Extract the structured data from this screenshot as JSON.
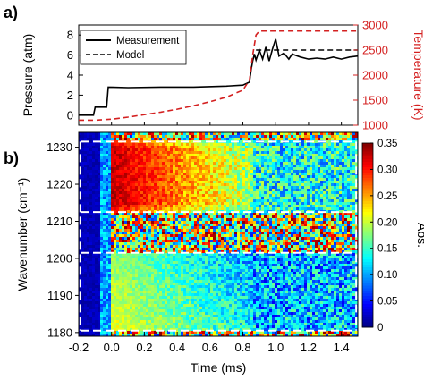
{
  "panel_a": {
    "label": "a)",
    "legend": [
      "Measurement",
      "Model"
    ]
  },
  "panel_b": {
    "label": "b)"
  },
  "chart_data": [
    {
      "type": "line",
      "panel": "a)",
      "xlim": [
        -0.2,
        1.5
      ],
      "ylabel": "Pressure (atm)",
      "ylim": [
        -1,
        9
      ],
      "yticks": [
        0,
        2,
        4,
        6,
        8
      ],
      "y2label": "Temperature (K)",
      "y2lim": [
        1000,
        3000
      ],
      "y2ticks": [
        1000,
        1500,
        2000,
        2500,
        3000
      ],
      "legend_position": "top-left",
      "series": [
        {
          "name": "Measurement",
          "axis": "pressure",
          "style": "solid-black",
          "x": [
            -0.2,
            -0.11,
            -0.1,
            -0.03,
            -0.02,
            0.1,
            0.3,
            0.5,
            0.7,
            0.8,
            0.84,
            0.85,
            0.86,
            0.87,
            0.88,
            0.9,
            0.92,
            0.94,
            0.96,
            0.98,
            1.0,
            1.02,
            1.05,
            1.08,
            1.1,
            1.15,
            1.2,
            1.25,
            1.3,
            1.35,
            1.4,
            1.45,
            1.5
          ],
          "y": [
            0.0,
            0.0,
            0.8,
            0.8,
            2.8,
            2.75,
            2.8,
            2.8,
            2.9,
            3.0,
            3.3,
            4.5,
            5.4,
            6.1,
            5.5,
            6.5,
            5.6,
            6.8,
            5.4,
            6.6,
            7.6,
            5.9,
            6.2,
            5.6,
            6.1,
            5.8,
            5.6,
            5.7,
            5.6,
            5.8,
            5.6,
            5.8,
            5.9
          ]
        },
        {
          "name": "Model",
          "axis": "pressure",
          "style": "dashed-black",
          "x": [
            0.88,
            1.0,
            1.5
          ],
          "y": [
            6.5,
            6.5,
            6.5
          ]
        },
        {
          "name": "Model",
          "axis": "temperature",
          "style": "dashed-red",
          "x": [
            -0.2,
            -0.1,
            0.0,
            0.1,
            0.2,
            0.3,
            0.4,
            0.5,
            0.6,
            0.7,
            0.8,
            0.84,
            0.86,
            0.88,
            0.9,
            1.0,
            1.5
          ],
          "y": [
            1100,
            1100,
            1120,
            1160,
            1210,
            1260,
            1320,
            1390,
            1470,
            1560,
            1700,
            1900,
            2400,
            2800,
            2880,
            2880,
            2880
          ]
        }
      ]
    },
    {
      "type": "heatmap",
      "panel": "b)",
      "xlabel": "Time (ms)",
      "xlim": [
        -0.2,
        1.5
      ],
      "xticks": [
        -0.2,
        0.0,
        0.2,
        0.4,
        0.6,
        0.8,
        1.0,
        1.2,
        1.4
      ],
      "ylabel": "Wavenumber (cm⁻¹)",
      "ylim": [
        1179,
        1234
      ],
      "yticks": [
        1180,
        1190,
        1200,
        1210,
        1220,
        1230
      ],
      "colorbar_label": "Abs.",
      "colorbar_range": [
        0,
        0.35
      ],
      "colorbar_ticks": [
        0,
        0.05,
        0.1,
        0.15,
        0.2,
        0.25,
        0.3,
        0.35
      ],
      "band_boundaries_cm1": [
        1231.5,
        1212.5,
        1201.5,
        1180.5
      ],
      "estimated_peak_absorbance": [
        {
          "band": "upper",
          "time_ms": 0.05,
          "abs": 0.33
        },
        {
          "band": "upper",
          "time_ms": 0.85,
          "abs": 0.18
        },
        {
          "band": "lower",
          "time_ms": 0.05,
          "abs": 0.18
        },
        {
          "band": "lower",
          "time_ms": 0.85,
          "abs": 0.1
        }
      ]
    }
  ]
}
